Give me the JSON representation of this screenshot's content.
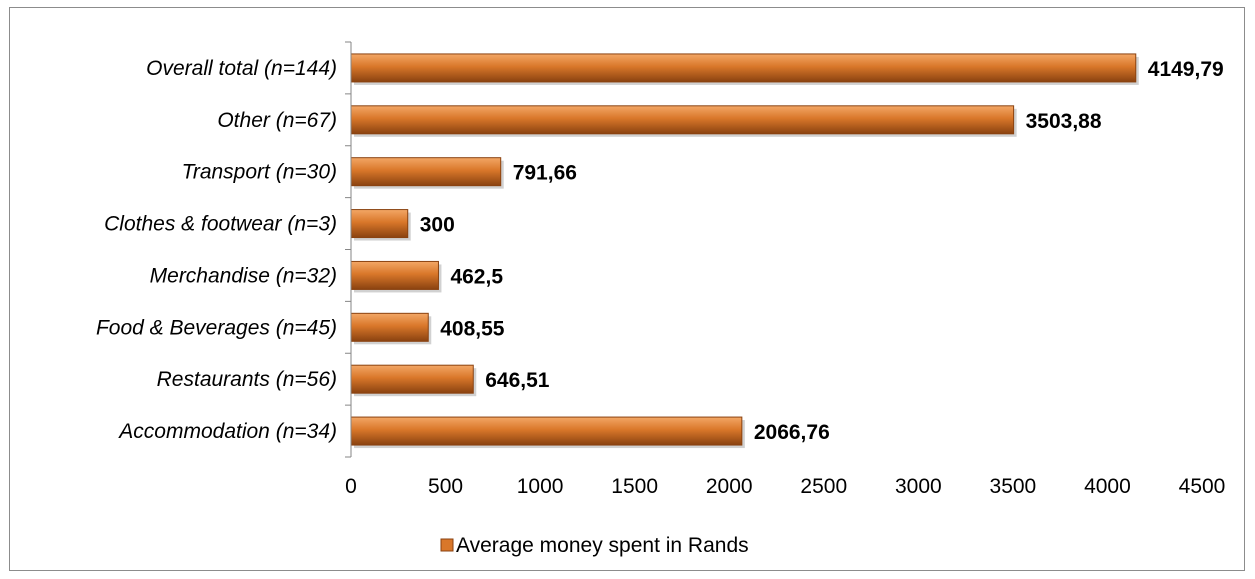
{
  "chart_data": {
    "type": "bar",
    "orientation": "horizontal",
    "categories": [
      "Accommodation (n=34)",
      "Restaurants (n=56)",
      "Food & Beverages (n=45)",
      "Merchandise (n=32)",
      "Clothes & footwear (n=3)",
      "Transport (n=30)",
      "Other (n=67)",
      "Overall total (n=144)"
    ],
    "series": [
      {
        "name": "Average money spent in Rands",
        "values": [
          2066.76,
          646.51,
          408.55,
          462.5,
          300,
          791.66,
          3503.88,
          4149.79
        ],
        "labels": [
          "2066,76",
          "646,51",
          "408,55",
          "462,5",
          "300",
          "791,66",
          "3503,88",
          "4149,79"
        ]
      }
    ],
    "title": "",
    "xlabel": "",
    "ylabel": "",
    "xlim": [
      0,
      4500
    ],
    "xticks": [
      0,
      500,
      1000,
      1500,
      2000,
      2500,
      3000,
      3500,
      4000,
      4500
    ],
    "grid": false,
    "legend_position": "bottom",
    "bar_color": "#d9772a",
    "bar_highlight_color": "#f3a766",
    "bar_edge_color": "#8a4210"
  }
}
